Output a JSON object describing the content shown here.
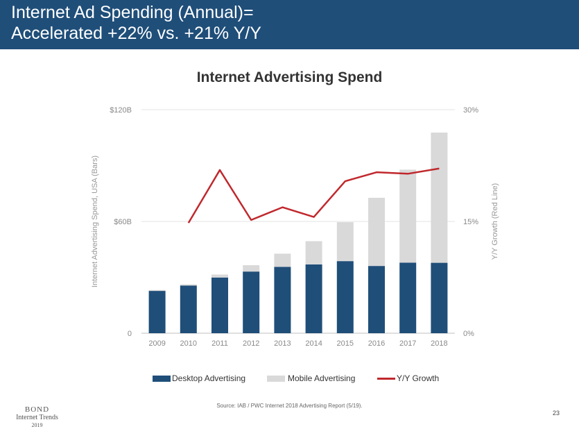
{
  "slide": {
    "title_line1": "Internet Ad Spending (Annual)=",
    "title_line2": "Accelerated +22% vs. +21% Y/Y",
    "source": "Source: IAB / PWC Internet 2018 Advertising Report (5/19).",
    "page_number": "23",
    "footer_logo": {
      "line1": "BOND",
      "line2": "Internet Trends",
      "line3": "2019"
    }
  },
  "colors": {
    "header_bg": "#1f4e79",
    "desktop": "#1f4e79",
    "mobile": "#d9d9d9",
    "growth": "#c0282d"
  },
  "chart_data": {
    "type": "bar",
    "title": "Internet Advertising Spend",
    "categories": [
      "2009",
      "2010",
      "2011",
      "2012",
      "2013",
      "2014",
      "2015",
      "2016",
      "2017",
      "2018"
    ],
    "stacked": true,
    "series": [
      {
        "name": "Desktop Advertising",
        "type": "bar",
        "axis": "left",
        "values": [
          22.7,
          25.6,
          29.9,
          33.1,
          35.6,
          36.9,
          38.7,
          36.1,
          37.9,
          37.8
        ]
      },
      {
        "name": "Mobile Advertising",
        "type": "bar",
        "axis": "left",
        "values": [
          0.5,
          0.6,
          1.6,
          3.4,
          7.1,
          12.5,
          20.9,
          36.6,
          49.9,
          69.9
        ]
      },
      {
        "name": "Y/Y Growth",
        "type": "line",
        "axis": "right",
        "values": [
          null,
          14.8,
          21.9,
          15.2,
          16.9,
          15.6,
          20.4,
          21.6,
          21.4,
          22.1
        ]
      }
    ],
    "ylabel": "Internet Advertising Spend, USA (Bars)",
    "y2label": "Y/Y Growth (Red Line)",
    "ylim": [
      0,
      120
    ],
    "y2lim": [
      0,
      30
    ],
    "yticks": [
      "0",
      "$60B",
      "$120B"
    ],
    "yticks_values": [
      0,
      60,
      120
    ],
    "y2ticks": [
      "0%",
      "15%",
      "30%"
    ],
    "y2ticks_values": [
      0,
      15,
      30
    ],
    "grid": true,
    "legend_position": "bottom"
  }
}
